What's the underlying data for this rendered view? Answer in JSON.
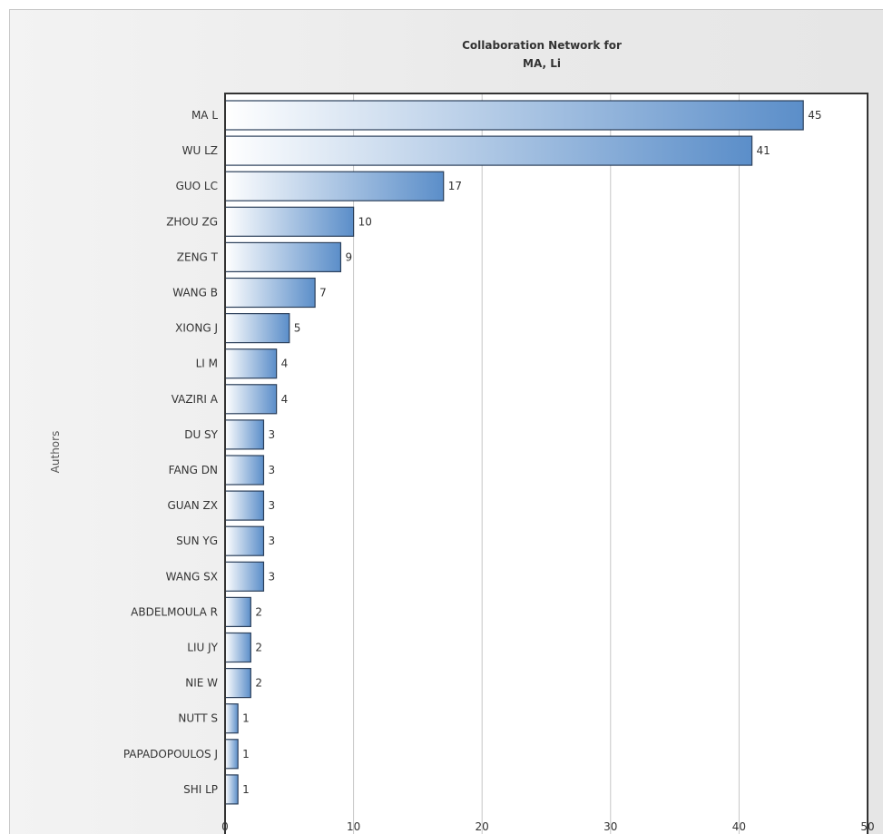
{
  "chart_data": {
    "type": "bar",
    "orientation": "horizontal",
    "title_lines": [
      "Collaboration Network for",
      "MA, Li"
    ],
    "ylabel": "Authors",
    "xlabel": "",
    "xlim": [
      0,
      50
    ],
    "x_ticks": [
      "0",
      "10",
      "20",
      "30",
      "40",
      "50"
    ],
    "grid": true,
    "legend": "none",
    "categories": [
      "MA L",
      "WU LZ",
      "GUO LC",
      "ZHOU ZG",
      "ZENG T",
      "WANG B",
      "XIONG J",
      "LI M",
      "VAZIRI A",
      "DU SY",
      "FANG DN",
      "GUAN ZX",
      "SUN YG",
      "WANG SX",
      "ABDELMOULA R",
      "LIU JY",
      "NIE W",
      "NUTT S",
      "PAPADOPOULOS J",
      "SHI LP"
    ],
    "values": [
      45,
      41,
      17,
      10,
      9,
      7,
      5,
      4,
      4,
      3,
      3,
      3,
      3,
      3,
      2,
      2,
      2,
      1,
      1,
      1
    ],
    "colors": {
      "bar_start": "#ffffff",
      "bar_end": "#5b8ec9",
      "bar_border": "#2b3f5a",
      "grid": "#c6c6c6",
      "plot_background": "#ffffff",
      "plot_border": "#333333"
    }
  }
}
